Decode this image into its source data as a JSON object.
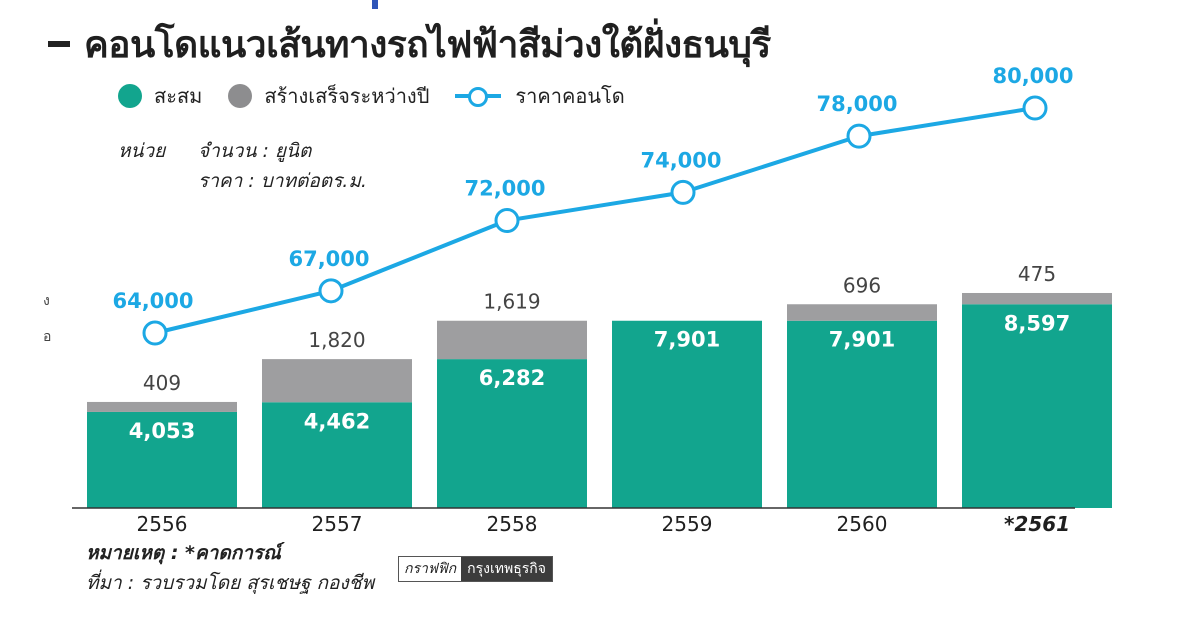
{
  "title": "คอนโดแนวเส้นทางรถไฟฟ้าสีม่วงใต้ฝั่งธนบุรี",
  "legend": {
    "cumulative": "สะสม",
    "completed": "สร้างเสร็จระหว่างปี",
    "price": "ราคาคอนโด"
  },
  "units": {
    "label": "หน่วย",
    "count_label": "จำนวน : ยูนิต",
    "price_label": "ราคา : บาทต่อตร.ม."
  },
  "edge_marks": [
    "ง",
    "อ"
  ],
  "notes": {
    "remark": "หมายเหตุ : *คาดการณ์",
    "source": "ที่มา : รวบรวมโดย สุรเชษฐ กองชีพ"
  },
  "credit": {
    "graphic": "กราฟฟิก",
    "brand": "กรุงเทพธุรกิจ"
  },
  "colors": {
    "cumulative": "#12a58e",
    "completed": "#9e9ea0",
    "price": "#1ca8e4",
    "axis": "#333333"
  },
  "chart_data": {
    "type": "bar",
    "stacked": true,
    "categories": [
      "2556",
      "2557",
      "2558",
      "2559",
      "2560",
      "*2561"
    ],
    "series": [
      {
        "name": "สะสม",
        "values": [
          4053,
          4462,
          6282,
          7901,
          7901,
          8597
        ],
        "labels": [
          "4,053",
          "4,462",
          "6,282",
          "7,901",
          "7,901",
          "8,597"
        ]
      },
      {
        "name": "สร้างเสร็จระหว่างปี",
        "values": [
          409,
          1820,
          1619,
          null,
          696,
          475
        ],
        "labels": [
          "409",
          "1,820",
          "1,619",
          "",
          "696",
          "475"
        ]
      }
    ],
    "line_series": {
      "name": "ราคาคอนโด",
      "values": [
        64000,
        67000,
        72000,
        74000,
        78000,
        80000
      ],
      "labels": [
        "64,000",
        "67,000",
        "72,000",
        "74,000",
        "78,000",
        "80,000"
      ]
    },
    "legend_position": "top-left",
    "grid": false
  }
}
